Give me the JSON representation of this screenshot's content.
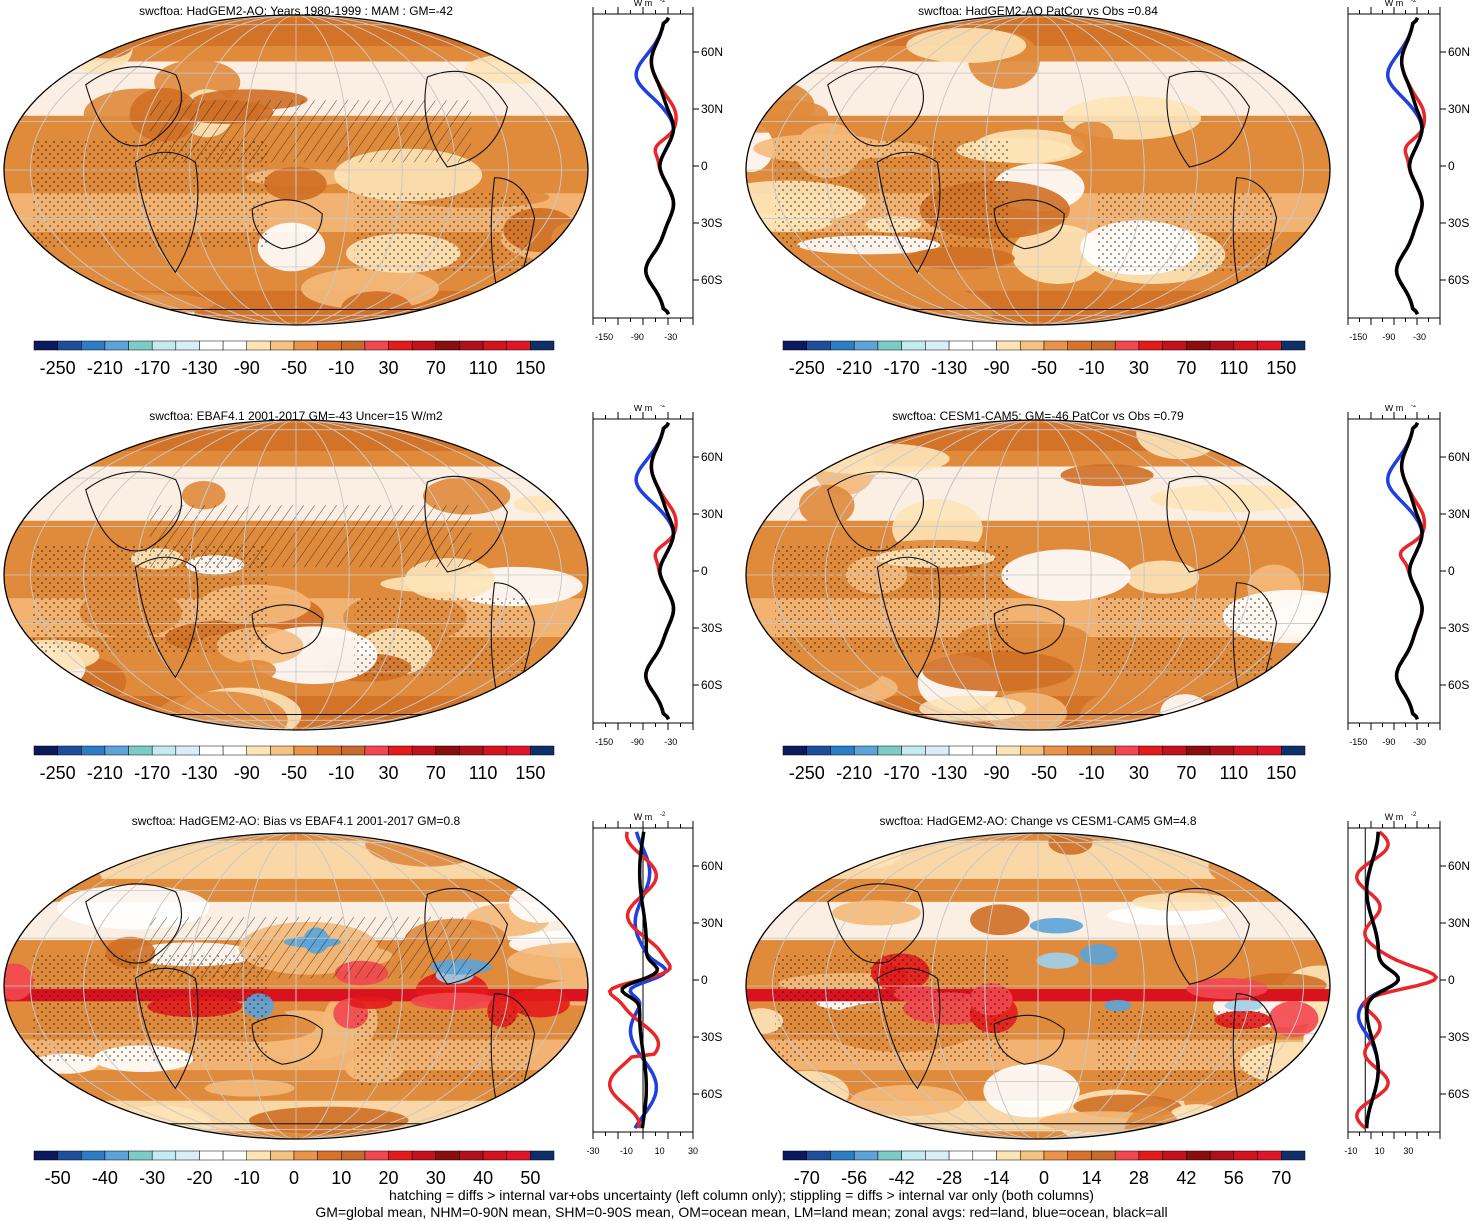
{
  "panels": [
    {
      "title": "swcftoa: HadGEM2-AO: Years 1980-1999 : MAM : GM=-42",
      "colorbar": {
        "labels": [
          "-250",
          "-210",
          "-170",
          "-130",
          "-90",
          "-50",
          "-10",
          "30",
          "70",
          "110",
          "150"
        ],
        "colors": [
          "#0b1a5e",
          "#1c4e9b",
          "#2d7cc6",
          "#5ba3d8",
          "#7ccbc7",
          "#c3ecf2",
          "#d9eef8",
          "#ffffff",
          "#ffffff",
          "#fde4b4",
          "#f6c27f",
          "#ea944a",
          "#d9732c",
          "#c86a2a",
          "#f2474f",
          "#e31b1b",
          "#c4101a",
          "#8b0e0e",
          "#b0101b",
          "#d3131d",
          "#e0152a",
          "#0f2f6a"
        ]
      },
      "zonal": {
        "ylabels": [
          "60N",
          "30N",
          "0",
          "30S",
          "60S"
        ],
        "xticks": [
          "-150",
          "-90",
          "-30"
        ],
        "unit": "W m",
        "unit_sup": "-2",
        "xmin": -170,
        "xmax": 10
      },
      "legend_note": ""
    },
    {
      "title": "swcftoa: HadGEM2-AO PatCor vs Obs =0.84",
      "colorbar": {
        "labels": [
          "-250",
          "-210",
          "-170",
          "-130",
          "-90",
          "-50",
          "-10",
          "30",
          "70",
          "110",
          "150"
        ],
        "colors": [
          "#0b1a5e",
          "#1c4e9b",
          "#2d7cc6",
          "#5ba3d8",
          "#7ccbc7",
          "#c3ecf2",
          "#d9eef8",
          "#ffffff",
          "#ffffff",
          "#fde4b4",
          "#f6c27f",
          "#ea944a",
          "#d9732c",
          "#c86a2a",
          "#f2474f",
          "#e31b1b",
          "#c4101a",
          "#8b0e0e",
          "#b0101b",
          "#d3131d",
          "#e0152a",
          "#0f2f6a"
        ]
      },
      "zonal": {
        "ylabels": [
          "60N",
          "30N",
          "0",
          "30S",
          "60S"
        ],
        "xticks": [
          "-150",
          "-90",
          "-30"
        ],
        "unit": "W m",
        "unit_sup": "-2",
        "xmin": -170,
        "xmax": 10
      },
      "legend_note": ""
    },
    {
      "title": "swcftoa: EBAF4.1 2001-2017 GM=-43 Uncer=15 W/m2",
      "colorbar": {
        "labels": [
          "-250",
          "-210",
          "-170",
          "-130",
          "-90",
          "-50",
          "-10",
          "30",
          "70",
          "110",
          "150"
        ],
        "colors": [
          "#0b1a5e",
          "#1c4e9b",
          "#2d7cc6",
          "#5ba3d8",
          "#7ccbc7",
          "#c3ecf2",
          "#d9eef8",
          "#ffffff",
          "#ffffff",
          "#fde4b4",
          "#f6c27f",
          "#ea944a",
          "#d9732c",
          "#c86a2a",
          "#f2474f",
          "#e31b1b",
          "#c4101a",
          "#8b0e0e",
          "#b0101b",
          "#d3131d",
          "#e0152a",
          "#0f2f6a"
        ]
      },
      "zonal": {
        "ylabels": [
          "60N",
          "30N",
          "0",
          "30S",
          "60S"
        ],
        "xticks": [
          "-150",
          "-90",
          "-30"
        ],
        "unit": "W m",
        "unit_sup": "-2",
        "xmin": -170,
        "xmax": 10
      },
      "legend_note": ""
    },
    {
      "title": "swcftoa: CESM1-CAM5: GM=-46 PatCor vs Obs =0.79",
      "colorbar": {
        "labels": [
          "-250",
          "-210",
          "-170",
          "-130",
          "-90",
          "-50",
          "-10",
          "30",
          "70",
          "110",
          "150"
        ],
        "colors": [
          "#0b1a5e",
          "#1c4e9b",
          "#2d7cc6",
          "#5ba3d8",
          "#7ccbc7",
          "#c3ecf2",
          "#d9eef8",
          "#ffffff",
          "#ffffff",
          "#fde4b4",
          "#f6c27f",
          "#ea944a",
          "#d9732c",
          "#c86a2a",
          "#f2474f",
          "#e31b1b",
          "#c4101a",
          "#8b0e0e",
          "#b0101b",
          "#d3131d",
          "#e0152a",
          "#0f2f6a"
        ]
      },
      "zonal": {
        "ylabels": [
          "60N",
          "30N",
          "0",
          "30S",
          "60S"
        ],
        "xticks": [
          "-150",
          "-90",
          "-30"
        ],
        "unit": "W m",
        "unit_sup": "-2",
        "xmin": -170,
        "xmax": 10
      },
      "legend_note": ""
    },
    {
      "title": "swcftoa: HadGEM2-AO: Bias vs EBAF4.1 2001-2017 GM=0.8",
      "colorbar": {
        "labels": [
          "-50",
          "-40",
          "-30",
          "-20",
          "-10",
          "0",
          "10",
          "20",
          "30",
          "40",
          "50"
        ],
        "colors": [
          "#0b1a5e",
          "#1c4e9b",
          "#2d7cc6",
          "#5ba3d8",
          "#7ccbc7",
          "#c3ecf2",
          "#d9eef8",
          "#ffffff",
          "#ffffff",
          "#fde4b4",
          "#f6c27f",
          "#ea944a",
          "#d9732c",
          "#c86a2a",
          "#f2474f",
          "#e31b1b",
          "#c4101a",
          "#8b0e0e",
          "#b0101b",
          "#d3131d",
          "#e0152a",
          "#0f2f6a"
        ]
      },
      "zonal": {
        "ylabels": [
          "60N",
          "30N",
          "0",
          "30S",
          "60S"
        ],
        "xticks": [
          "-30",
          "-10",
          "10",
          "30"
        ],
        "unit": "W m",
        "unit_sup": "-2",
        "xmin": -30,
        "xmax": 30
      },
      "legend_note": ""
    },
    {
      "title": "swcftoa: HadGEM2-AO: Change vs CESM1-CAM5 GM=4.8",
      "colorbar": {
        "labels": [
          "-70",
          "-56",
          "-42",
          "-28",
          "-14",
          "0",
          "14",
          "28",
          "42",
          "56",
          "70"
        ],
        "colors": [
          "#0b1a5e",
          "#1c4e9b",
          "#2d7cc6",
          "#5ba3d8",
          "#7ccbc7",
          "#c3ecf2",
          "#d9eef8",
          "#ffffff",
          "#ffffff",
          "#fde4b4",
          "#f6c27f",
          "#ea944a",
          "#d9732c",
          "#c86a2a",
          "#f2474f",
          "#e31b1b",
          "#c4101a",
          "#8b0e0e",
          "#b0101b",
          "#d3131d",
          "#e0152a",
          "#0f2f6a"
        ]
      },
      "zonal": {
        "ylabels": [
          "60N",
          "30N",
          "0",
          "30S",
          "60S"
        ],
        "xticks": [
          "-10",
          "10",
          "30"
        ],
        "unit": "W m",
        "unit_sup": "-2",
        "xmin": -12,
        "xmax": 52
      },
      "legend_note": ""
    }
  ],
  "footer": {
    "line1": "hatching = diffs > internal var+obs uncertainty (left column only); stippling = diffs > internal var only (both columns)",
    "line2": "GM=global mean, NHM=0-90N mean, SHM=0-90S mean, OM=ocean mean, LM=land mean; zonal avgs: red=land, blue=ocean, black=all"
  },
  "colors": {
    "land": "#e8272a",
    "ocean": "#1f3fe0",
    "all": "#000000",
    "map_base": "#e08a3c",
    "map_dark": "#cf6f25",
    "map_light": "#f4b97a",
    "map_pale": "#fde4b8"
  }
}
